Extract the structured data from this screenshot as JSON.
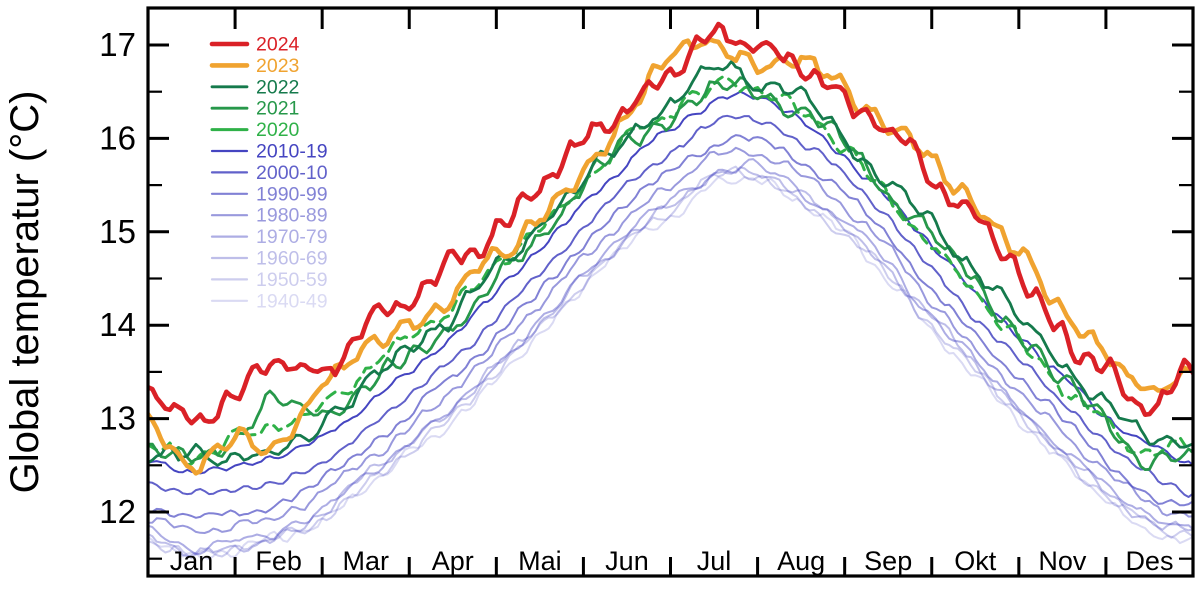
{
  "figure": {
    "background": "#ffffff",
    "axis_color": "#000000",
    "y_axis_title": "Global temperatur (°C)",
    "legend_position": "top-left"
  },
  "chart_data": {
    "type": "line",
    "title": "",
    "xlabel": "",
    "ylabel": "Global temperatur (°C)",
    "categories": [
      "Jan",
      "Feb",
      "Mar",
      "Apr",
      "Mai",
      "Jun",
      "Jul",
      "Aug",
      "Sep",
      "Okt",
      "Nov",
      "Des"
    ],
    "y_ticks": [
      12,
      13,
      14,
      15,
      16,
      17
    ],
    "y_minor_step": 0.5,
    "ylim": [
      11.3,
      17.4
    ],
    "xlim_months": [
      0,
      12
    ],
    "grid": false,
    "sample_positions_months": [
      0,
      0.5,
      1,
      1.5,
      2,
      2.5,
      3,
      3.5,
      4,
      4.5,
      5,
      5.5,
      6,
      6.5,
      7,
      7.5,
      8,
      8.5,
      9,
      9.5,
      10,
      10.5,
      11,
      11.5,
      12
    ],
    "series": [
      {
        "name": "2024",
        "color": "#da2127",
        "opacity": 1,
        "width": 4.6,
        "dashed": false,
        "wiggle": 0.12,
        "values": [
          13.4,
          13.0,
          13.2,
          13.6,
          13.45,
          14.05,
          14.25,
          14.6,
          15.0,
          15.45,
          15.9,
          16.35,
          16.7,
          17.1,
          17.0,
          16.8,
          16.45,
          16.1,
          15.6,
          15.15,
          14.55,
          13.95,
          13.5,
          13.1,
          13.45
        ]
      },
      {
        "name": "2023",
        "color": "#f0a330",
        "opacity": 1,
        "width": 4.6,
        "dashed": false,
        "wiggle": 0.12,
        "values": [
          12.95,
          12.55,
          12.7,
          12.75,
          13.35,
          13.7,
          14.0,
          14.35,
          14.75,
          15.2,
          15.65,
          16.3,
          16.9,
          17.0,
          16.9,
          16.8,
          16.55,
          16.2,
          15.75,
          15.3,
          14.75,
          14.15,
          13.65,
          13.35,
          13.55
        ]
      },
      {
        "name": "2022",
        "color": "#157a4c",
        "opacity": 1,
        "width": 2.8,
        "dashed": false,
        "wiggle": 0.1,
        "values": [
          12.65,
          12.6,
          12.65,
          12.7,
          12.95,
          13.35,
          13.75,
          14.15,
          14.55,
          15.05,
          15.55,
          16.0,
          16.35,
          16.7,
          16.6,
          16.45,
          15.95,
          15.55,
          15.05,
          14.6,
          14.05,
          13.55,
          13.1,
          12.8,
          12.9
        ]
      },
      {
        "name": "2021",
        "color": "#27984a",
        "opacity": 1,
        "width": 2.8,
        "dashed": false,
        "wiggle": 0.1,
        "values": [
          12.6,
          12.5,
          12.75,
          13.25,
          13.05,
          13.3,
          13.65,
          14.05,
          14.45,
          14.95,
          15.45,
          15.9,
          16.25,
          16.55,
          16.45,
          16.3,
          15.9,
          15.45,
          14.95,
          14.45,
          13.95,
          13.45,
          12.95,
          12.6,
          12.65
        ]
      },
      {
        "name": "2020",
        "color": "#2fb148",
        "opacity": 1,
        "width": 3.0,
        "dashed": true,
        "wiggle": 0.09,
        "values": [
          12.7,
          12.65,
          12.85,
          12.95,
          13.1,
          13.45,
          13.8,
          14.2,
          14.6,
          15.05,
          15.5,
          15.95,
          16.3,
          16.6,
          16.5,
          16.3,
          15.85,
          15.4,
          14.85,
          14.35,
          13.85,
          13.35,
          12.95,
          12.65,
          12.7
        ]
      },
      {
        "name": "2010-19",
        "color": "#4545c1",
        "opacity": 1,
        "width": 2.0,
        "dashed": false,
        "wiggle": 0.04,
        "values": [
          12.55,
          12.45,
          12.5,
          12.6,
          12.8,
          13.15,
          13.5,
          13.9,
          14.35,
          14.8,
          15.3,
          15.75,
          16.1,
          16.4,
          16.45,
          16.2,
          15.8,
          15.35,
          14.85,
          14.35,
          13.9,
          13.45,
          13.0,
          12.7,
          12.5
        ]
      },
      {
        "name": "2000-10",
        "color": "#4545c1",
        "opacity": 0.85,
        "width": 2.0,
        "dashed": false,
        "wiggle": 0.04,
        "values": [
          12.3,
          12.2,
          12.25,
          12.35,
          12.55,
          12.9,
          13.25,
          13.65,
          14.1,
          14.55,
          15.05,
          15.5,
          15.85,
          16.15,
          16.2,
          15.95,
          15.6,
          15.15,
          14.6,
          14.1,
          13.65,
          13.2,
          12.75,
          12.4,
          12.2
        ]
      },
      {
        "name": "1990-99",
        "color": "#4545c1",
        "opacity": 0.68,
        "width": 2.0,
        "dashed": false,
        "wiggle": 0.045,
        "values": [
          12.05,
          11.95,
          12.0,
          12.1,
          12.35,
          12.7,
          13.05,
          13.45,
          13.9,
          14.35,
          14.85,
          15.3,
          15.65,
          15.95,
          16.0,
          15.75,
          15.4,
          14.95,
          14.4,
          13.9,
          13.45,
          13.0,
          12.55,
          12.2,
          12.05
        ]
      },
      {
        "name": "1980-89",
        "color": "#4545c1",
        "opacity": 0.55,
        "width": 2.0,
        "dashed": false,
        "wiggle": 0.05,
        "values": [
          11.9,
          11.8,
          11.85,
          11.95,
          12.2,
          12.55,
          12.9,
          13.3,
          13.75,
          14.2,
          14.7,
          15.15,
          15.5,
          15.8,
          15.85,
          15.6,
          15.25,
          14.8,
          14.25,
          13.75,
          13.3,
          12.85,
          12.45,
          12.1,
          11.95
        ]
      },
      {
        "name": "1970-79",
        "color": "#4545c1",
        "opacity": 0.44,
        "width": 2.0,
        "dashed": false,
        "wiggle": 0.05,
        "values": [
          11.8,
          11.65,
          11.7,
          11.8,
          12.05,
          12.4,
          12.75,
          13.15,
          13.6,
          14.05,
          14.55,
          15.0,
          15.35,
          15.65,
          15.7,
          15.45,
          15.1,
          14.65,
          14.1,
          13.6,
          13.15,
          12.7,
          12.3,
          11.95,
          11.85
        ]
      },
      {
        "name": "1960-69",
        "color": "#4545c1",
        "opacity": 0.35,
        "width": 2.0,
        "dashed": false,
        "wiggle": 0.055,
        "values": [
          11.75,
          11.6,
          11.65,
          11.75,
          12.0,
          12.35,
          12.7,
          13.1,
          13.55,
          14.0,
          14.5,
          14.95,
          15.3,
          15.6,
          15.65,
          15.4,
          15.05,
          14.6,
          14.05,
          13.55,
          13.1,
          12.65,
          12.25,
          11.9,
          11.8
        ]
      },
      {
        "name": "1950-59",
        "color": "#4545c1",
        "opacity": 0.27,
        "width": 2.0,
        "dashed": false,
        "wiggle": 0.06,
        "values": [
          11.7,
          11.55,
          11.6,
          11.7,
          11.95,
          12.3,
          12.65,
          13.05,
          13.5,
          13.95,
          14.45,
          14.9,
          15.25,
          15.55,
          15.6,
          15.35,
          15.0,
          14.55,
          14.0,
          13.5,
          13.05,
          12.6,
          12.2,
          11.85,
          11.75
        ]
      },
      {
        "name": "1940-49",
        "color": "#4545c1",
        "opacity": 0.2,
        "width": 2.0,
        "dashed": false,
        "wiggle": 0.06,
        "values": [
          11.75,
          11.55,
          11.6,
          11.7,
          11.9,
          12.25,
          12.6,
          13.0,
          13.45,
          13.9,
          14.4,
          14.85,
          15.2,
          15.5,
          15.55,
          15.3,
          14.95,
          14.5,
          13.95,
          13.45,
          13.0,
          12.55,
          12.15,
          11.8,
          11.7
        ]
      }
    ]
  }
}
